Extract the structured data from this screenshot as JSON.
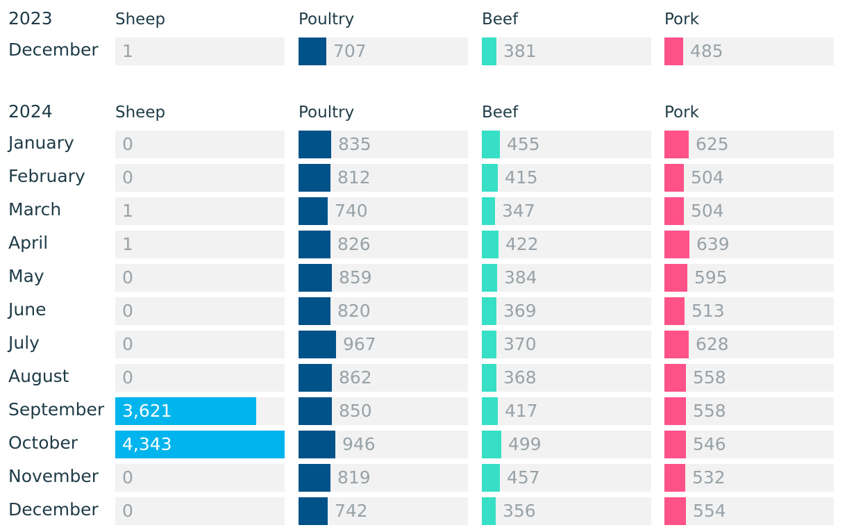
{
  "chart_data": {
    "type": "table",
    "columns": [
      "Sheep",
      "Poultry",
      "Beef",
      "Pork"
    ],
    "colors": {
      "Sheep": "#00b4ee",
      "Poultry": "#005288",
      "Beef": "#36dfc5",
      "Pork": "#ff5289",
      "cell_background": "#f2f2f2",
      "label_text": "#1e3b47",
      "value_text": "#98a2a8"
    },
    "groups": [
      {
        "year": "2023",
        "rows": [
          {
            "month": "December",
            "values": [
              1,
              707,
              381,
              485
            ],
            "labels": [
              "1",
              "707",
              "381",
              "485"
            ]
          }
        ]
      },
      {
        "year": "2024",
        "rows": [
          {
            "month": "January",
            "values": [
              0,
              835,
              455,
              625
            ],
            "labels": [
              "0",
              "835",
              "455",
              "625"
            ]
          },
          {
            "month": "February",
            "values": [
              0,
              812,
              415,
              504
            ],
            "labels": [
              "0",
              "812",
              "415",
              "504"
            ]
          },
          {
            "month": "March",
            "values": [
              1,
              740,
              347,
              504
            ],
            "labels": [
              "1",
              "740",
              "347",
              "504"
            ]
          },
          {
            "month": "April",
            "values": [
              1,
              826,
              422,
              639
            ],
            "labels": [
              "1",
              "826",
              "422",
              "639"
            ]
          },
          {
            "month": "May",
            "values": [
              0,
              859,
              384,
              595
            ],
            "labels": [
              "0",
              "859",
              "384",
              "595"
            ]
          },
          {
            "month": "June",
            "values": [
              0,
              820,
              369,
              513
            ],
            "labels": [
              "0",
              "820",
              "369",
              "513"
            ]
          },
          {
            "month": "July",
            "values": [
              0,
              967,
              370,
              628
            ],
            "labels": [
              "0",
              "967",
              "370",
              "628"
            ]
          },
          {
            "month": "August",
            "values": [
              0,
              862,
              368,
              558
            ],
            "labels": [
              "0",
              "862",
              "368",
              "558"
            ]
          },
          {
            "month": "September",
            "values": [
              3621,
              850,
              417,
              558
            ],
            "labels": [
              "3,621",
              "850",
              "417",
              "558"
            ]
          },
          {
            "month": "October",
            "values": [
              4343,
              946,
              499,
              546
            ],
            "labels": [
              "4,343",
              "946",
              "499",
              "546"
            ]
          },
          {
            "month": "November",
            "values": [
              0,
              819,
              457,
              532
            ],
            "labels": [
              "0",
              "819",
              "457",
              "532"
            ]
          },
          {
            "month": "December",
            "values": [
              0,
              742,
              356,
              554
            ],
            "labels": [
              "0",
              "742",
              "356",
              "554"
            ]
          }
        ]
      }
    ],
    "scale_max": 4343
  }
}
